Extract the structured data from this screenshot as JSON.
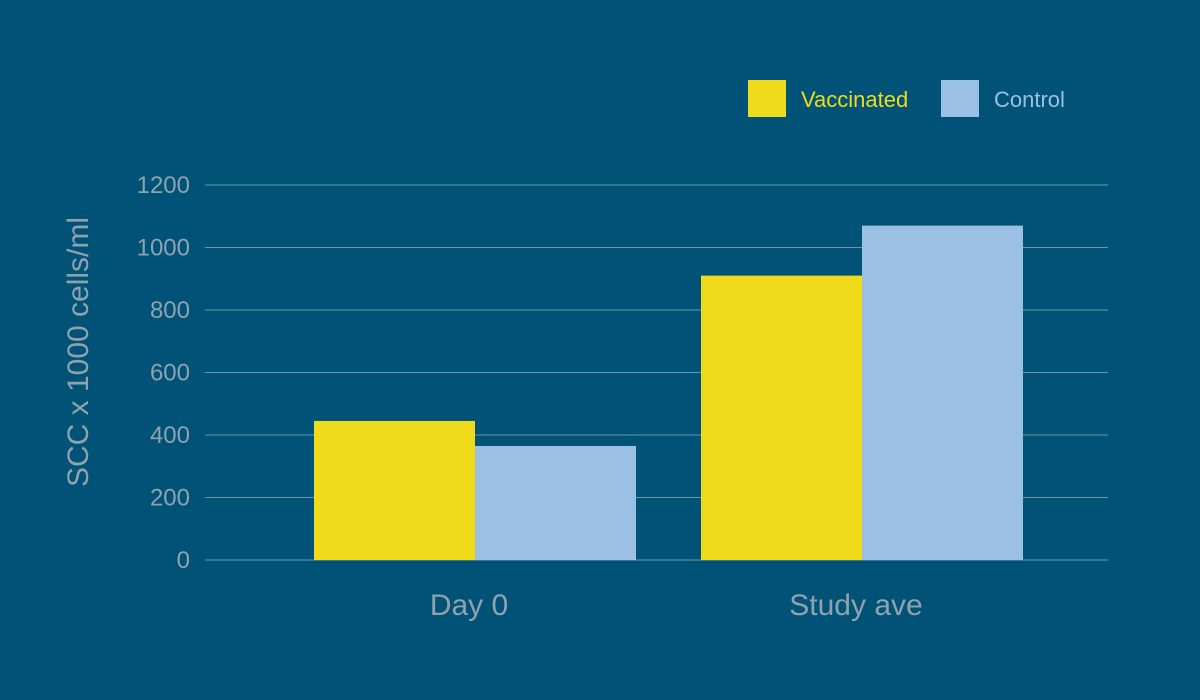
{
  "chart_data": {
    "type": "bar",
    "categories": [
      "Day 0",
      "Study ave"
    ],
    "series": [
      {
        "name": "Vaccinated",
        "color": "#f0db1b",
        "values": [
          445,
          910
        ]
      },
      {
        "name": "Control",
        "color": "#9bc0e4",
        "values": [
          365,
          1070
        ]
      }
    ],
    "ylabel": "SCC x 1000 cells/ml",
    "xlabel": "",
    "ylim": [
      0,
      1200
    ],
    "yticks": [
      0,
      200,
      400,
      600,
      800,
      1000,
      1200
    ],
    "grid": true,
    "legend_position": "top-right"
  },
  "colors": {
    "background": "#005377",
    "gridline": "#6f94a8",
    "tick_text": "#8fa2ae"
  }
}
